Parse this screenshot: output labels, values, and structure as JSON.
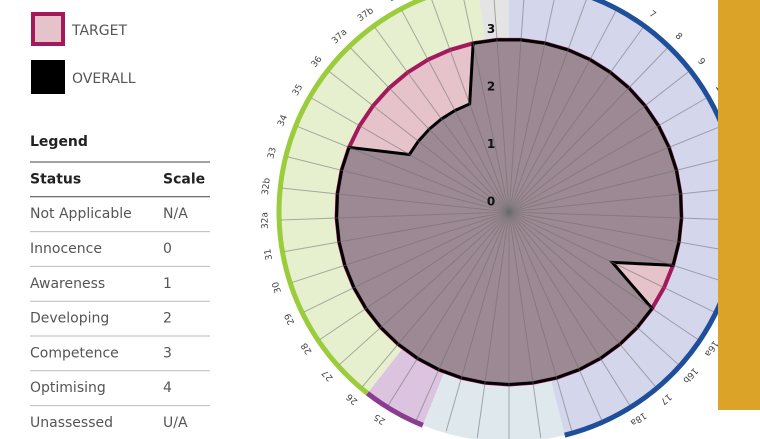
{
  "chart_data": {
    "type": "radar",
    "categories": [
      null,
      null,
      null,
      "6",
      "7",
      "8",
      "9",
      "10",
      null,
      null,
      null,
      null,
      null,
      "14",
      "15",
      "16a",
      "16b",
      "17",
      "18a",
      null,
      null,
      null,
      null,
      null,
      null,
      null,
      "25",
      "26",
      "27",
      "28",
      "29",
      "30",
      "31",
      "32a",
      "32b",
      "33",
      "34",
      "35",
      "36",
      "37a",
      "37b",
      "38",
      null,
      null,
      null
    ],
    "series": [
      {
        "name": "TARGET",
        "color": "#e6c3cb",
        "line_color": "#a3195b",
        "values": [
          3,
          3,
          3,
          3,
          3,
          3,
          3,
          3,
          3,
          3,
          3,
          3,
          3,
          3,
          3,
          3,
          3,
          3,
          3,
          3,
          3,
          3,
          3,
          3,
          3,
          3,
          3,
          3,
          3,
          3,
          3,
          3,
          3,
          3,
          3,
          3,
          3,
          3,
          3,
          3,
          3,
          3,
          3,
          3,
          3
        ]
      },
      {
        "name": "OVERALL",
        "color": "#8f7f89",
        "line_color": "#000000",
        "values": [
          3,
          3,
          3,
          3,
          3,
          3,
          3,
          3,
          3,
          3,
          3,
          3,
          3,
          3,
          2,
          3,
          3,
          3,
          3,
          3,
          3,
          3,
          3,
          3,
          3,
          3,
          3,
          3,
          3,
          3,
          3,
          3,
          3,
          3,
          3,
          3,
          3,
          2,
          2,
          2,
          2,
          2,
          2,
          3,
          3
        ]
      }
    ],
    "rlim": [
      0,
      4
    ],
    "rticks": [
      0,
      1,
      2,
      3
    ]
  },
  "legend_table": {
    "title": "Legend",
    "header": [
      "Status",
      "Scale"
    ],
    "rows": [
      [
        "Not Applicable",
        "N/A"
      ],
      [
        "Innocence",
        "0"
      ],
      [
        "Awareness",
        "1"
      ],
      [
        "Developing",
        "2"
      ],
      [
        "Competence",
        "3"
      ],
      [
        "Optimising",
        "4"
      ],
      [
        "Unassessed",
        "U/A"
      ]
    ]
  }
}
